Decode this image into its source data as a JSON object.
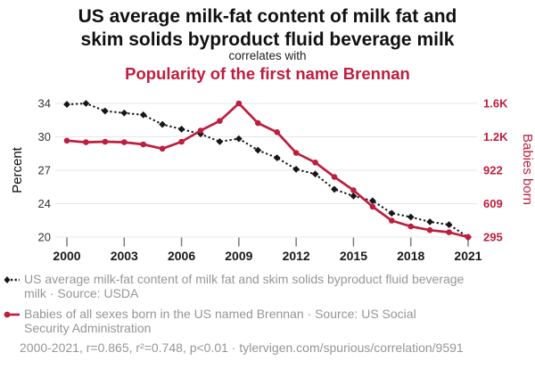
{
  "header": {
    "title": "US average milk-fat content of milk fat and\nskim solids byproduct fluid beverage milk",
    "connector": "correlates with",
    "subtitle": "Popularity of the first name Brennan"
  },
  "colors": {
    "accent_red": "#BE1E3E",
    "series_black": "#161616",
    "legend_gray": "#969696",
    "grid_gray": "#e7e7e7"
  },
  "chart_data": {
    "type": "line",
    "title": "US average milk-fat content of milk fat and skim solids byproduct fluid beverage milk correlates with Popularity of the first name Brennan",
    "x": [
      2000,
      2001,
      2002,
      2003,
      2004,
      2005,
      2006,
      2007,
      2008,
      2009,
      2010,
      2011,
      2012,
      2013,
      2014,
      2015,
      2016,
      2017,
      2018,
      2019,
      2020,
      2021
    ],
    "x_tick_labels": [
      "2000",
      "2003",
      "2006",
      "2009",
      "2012",
      "2015",
      "2018",
      "2021"
    ],
    "left_axis": {
      "label": "Percent",
      "min": 20,
      "max": 34,
      "tick_labels_top_to_bottom": [
        "34",
        "30",
        "27",
        "24",
        "20"
      ]
    },
    "right_axis": {
      "label": "Babies born",
      "min": 295,
      "max": 1550,
      "tick_labels_top_to_bottom": [
        "1.6K",
        "1.2K",
        "922",
        "609",
        "295"
      ]
    },
    "grid": "horizontal-only",
    "legend_position": "below",
    "series": [
      {
        "name": "US average milk-fat content of milk fat and skim solids byproduct fluid beverage milk",
        "axis": "left",
        "line_style": "dotted",
        "marker": "diamond",
        "color": "#161616",
        "values": [
          33.9,
          34.0,
          33.2,
          33.0,
          32.8,
          31.8,
          31.3,
          30.8,
          30.0,
          30.3,
          29.1,
          28.3,
          27.1,
          26.6,
          25.0,
          24.3,
          23.8,
          22.5,
          22.1,
          21.6,
          21.3,
          20.0
        ]
      },
      {
        "name": "Babies of all sexes born in the US named Brennan",
        "axis": "right",
        "line_style": "solid",
        "marker": "circle",
        "color": "#BE1E3E",
        "values": [
          1200,
          1185,
          1190,
          1185,
          1165,
          1125,
          1190,
          1295,
          1385,
          1550,
          1365,
          1280,
          1085,
          995,
          860,
          735,
          580,
          450,
          395,
          360,
          340,
          295
        ]
      }
    ]
  },
  "legend": {
    "items": [
      {
        "marker": "black-dotted-diamond",
        "label": "US average milk-fat content of milk fat and skim solids byproduct fluid beverage\nmilk · Source: USDA"
      },
      {
        "marker": "red-solid-circle",
        "label": "Babies of all sexes born in the US named Brennan · Source: US Social\nSecurity Administration"
      }
    ]
  },
  "footer": {
    "stats": "2000-2021, r=0.865, r²=0.748, p<0.01 · tylervigen.com/spurious/correlation/9591"
  }
}
